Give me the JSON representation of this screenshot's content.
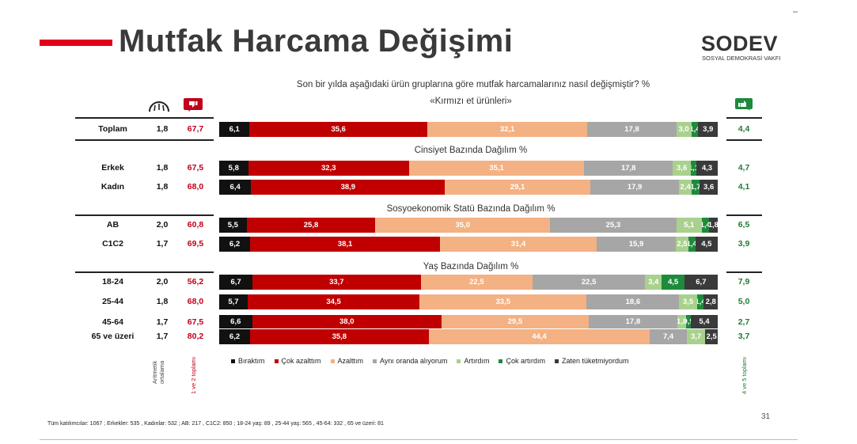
{
  "header": {
    "title": "Mutfak Harcama Değişimi",
    "logo_name": "SODEV",
    "logo_subtitle": "SOSYAL DEMOKRASİ VAKFI",
    "brand_color": "#e2001a"
  },
  "question": "Son bir yılda aşağıdaki ürün gruplarına göre mutfak harcamalarınız nasıl değişmiştir? %",
  "product": "«Kırmızı et ürünleri»",
  "icons": {
    "mean": "gauge-icon",
    "negative": "thumbs-down-icon",
    "positive": "thumbs-up-icon"
  },
  "column_labels": {
    "mean": "Aritmetik ortalama",
    "negative": "1 ve 2 toplamı",
    "positive": "4 ve 5 toplamı"
  },
  "footnote": "Tüm katılımcılar: 1067 ; Erkekler: 535 , Kadınlar: 532 ; AB: 217 , C1C2: 850 ;  18-24 yaş: 89 , 25-44 yaş: 565 , 45-64: 332 , 65 ve üzeri: 81",
  "page_number": "31",
  "chart_data": {
    "type": "bar",
    "orientation": "horizontal",
    "stacked": true,
    "unit": "%",
    "title": "«Kırmızı et ürünleri»",
    "series": [
      {
        "name": "Bıraktım",
        "color": "#111111"
      },
      {
        "name": "Çok azalttım",
        "color": "#c00000"
      },
      {
        "name": "Azalttım",
        "color": "#f4b183"
      },
      {
        "name": "Aynı oranda alıyorum",
        "color": "#a6a6a6"
      },
      {
        "name": "Artırdım",
        "color": "#a9d18e"
      },
      {
        "name": "Çok artırdım",
        "color": "#1e8a3c"
      },
      {
        "name": "Zaten tüketmiyordum",
        "color": "#3a3a3a"
      }
    ],
    "groups": [
      {
        "title": "",
        "rows": [
          {
            "label": "Toplam",
            "mean": "1,8",
            "neg_total": "67,7",
            "pos_total": "4,4",
            "values": [
              6.1,
              35.6,
              32.1,
              17.8,
              3.0,
              1.4,
              3.9
            ],
            "labels": [
              "6,1",
              "35,6",
              "32,1",
              "17,8",
              "3,0",
              "1,4",
              "3,9"
            ]
          }
        ]
      },
      {
        "title": "Cinsiyet Bazında Dağılım %",
        "rows": [
          {
            "label": "Erkek",
            "mean": "1,8",
            "neg_total": "67,5",
            "pos_total": "4,7",
            "values": [
              5.8,
              32.3,
              35.1,
              17.8,
              3.6,
              1.1,
              4.3
            ],
            "labels": [
              "5,8",
              "32,3",
              "35,1",
              "17,8",
              "3,6",
              "1,1",
              "4,3"
            ]
          },
          {
            "label": "Kadın",
            "mean": "1,8",
            "neg_total": "68,0",
            "pos_total": "4,1",
            "values": [
              6.4,
              38.9,
              29.1,
              17.9,
              2.4,
              1.7,
              3.6
            ],
            "labels": [
              "6,4",
              "38,9",
              "29,1",
              "17,9",
              "2,4",
              "1,7",
              "3,6"
            ]
          }
        ]
      },
      {
        "title": "Sosyoekonomik Statü Bazında Dağılım %",
        "rows": [
          {
            "label": "AB",
            "mean": "2,0",
            "neg_total": "60,8",
            "pos_total": "6,5",
            "values": [
              5.5,
              25.8,
              35.0,
              25.3,
              5.1,
              1.4,
              1.8
            ],
            "labels": [
              "5,5",
              "25,8",
              "35,0",
              "25,3",
              "5,1",
              "1,4",
              "1,8"
            ]
          },
          {
            "label": "C1C2",
            "mean": "1,7",
            "neg_total": "69,5",
            "pos_total": "3,9",
            "values": [
              6.2,
              38.1,
              31.4,
              15.9,
              2.5,
              1.4,
              4.5
            ],
            "labels": [
              "6,2",
              "38,1",
              "31,4",
              "15,9",
              "2,5",
              "1,4",
              "4,5"
            ]
          }
        ]
      },
      {
        "title": "Yaş Bazında Dağılım %",
        "rows": [
          {
            "label": "18-24",
            "mean": "2,0",
            "neg_total": "56,2",
            "pos_total": "7,9",
            "values": [
              6.7,
              33.7,
              22.5,
              22.5,
              3.4,
              4.5,
              6.7
            ],
            "labels": [
              "6,7",
              "33,7",
              "22,5",
              "22,5",
              "3,4",
              "4,5",
              "6,7"
            ]
          },
          {
            "label": "25-44",
            "mean": "1,8",
            "neg_total": "68,0",
            "pos_total": "5,0",
            "values": [
              5.7,
              34.5,
              33.5,
              18.6,
              3.5,
              1.4,
              2.8
            ],
            "labels": [
              "5,7",
              "34,5",
              "33,5",
              "18,6",
              "3,5",
              "1,4",
              "2,8"
            ]
          },
          {
            "label": "45-64",
            "mean": "1,7",
            "neg_total": "67,5",
            "pos_total": "2,7",
            "values": [
              6.6,
              38.0,
              29.5,
              17.8,
              1.8,
              0.9,
              5.4
            ],
            "labels": [
              "6,6",
              "38,0",
              "29,5",
              "17,8",
              "1,8",
              "0,9",
              "5,4"
            ]
          },
          {
            "label": "65 ve üzeri",
            "mean": "1,7",
            "neg_total": "80,2",
            "pos_total": "3,7",
            "values": [
              6.2,
              35.8,
              44.4,
              7.4,
              3.7,
              0,
              2.5
            ],
            "labels": [
              "6,2",
              "35,8",
              "44,4",
              "7,4",
              "3,7",
              "",
              "2,5"
            ]
          }
        ]
      }
    ]
  }
}
